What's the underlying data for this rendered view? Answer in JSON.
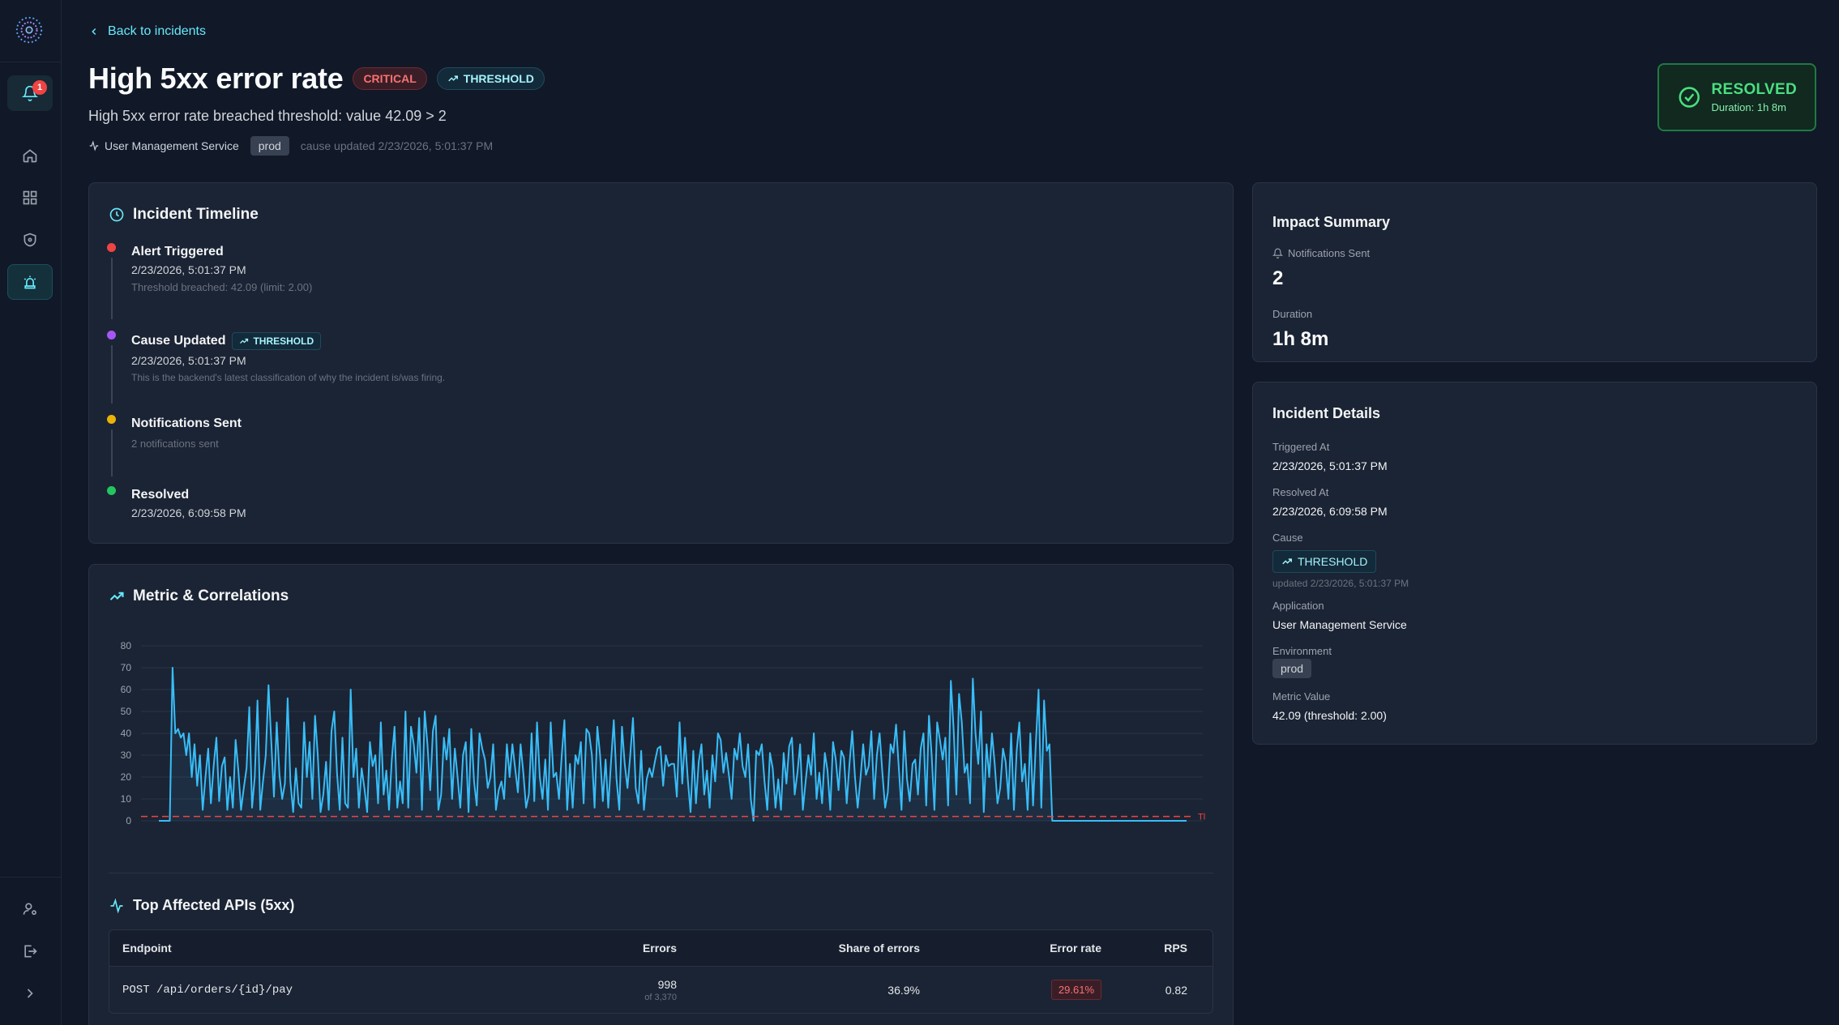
{
  "nav": {
    "notification_count": "1"
  },
  "header": {
    "back_label": "Back to incidents",
    "title": "High 5xx error rate",
    "severity": "CRITICAL",
    "cause_type": "THRESHOLD",
    "description": "High 5xx error rate breached threshold: value 42.09 > 2",
    "service": "User Management Service",
    "environment": "prod",
    "cause_updated": "cause updated 2/23/2026, 5:01:37 PM",
    "status": "RESOLVED",
    "status_duration": "Duration: 1h 8m",
    "status_color": "#4ade80"
  },
  "timeline": {
    "title": "Incident Timeline",
    "items": [
      {
        "label": "Alert Triggered",
        "time": "2/23/2026, 5:01:37 PM",
        "note": "Threshold breached: 42.09 (limit: 2.00)",
        "color": "#ef4444"
      },
      {
        "label": "Cause Updated",
        "badge": "THRESHOLD",
        "time": "2/23/2026, 5:01:37 PM",
        "note": "This is the backend's latest classification of why the incident is/was firing.",
        "color": "#a855f7"
      },
      {
        "label": "Notifications Sent",
        "note": "2 notifications sent",
        "color": "#eab308"
      },
      {
        "label": "Resolved",
        "time": "2/23/2026, 6:09:58 PM",
        "color": "#22c55e"
      }
    ]
  },
  "metrics": {
    "title": "Metric & Correlations",
    "threshold_label": "Tl"
  },
  "chart_data": {
    "type": "line",
    "title": "",
    "xlabel": "",
    "ylabel": "",
    "ylim": [
      0,
      80
    ],
    "yticks": [
      0,
      10,
      20,
      30,
      40,
      50,
      60,
      70,
      80
    ],
    "grid": true,
    "threshold": 2,
    "series": [
      {
        "values": [
          0,
          0,
          0,
          0,
          0,
          70,
          40,
          42,
          38,
          40,
          30,
          40,
          20,
          35,
          16,
          30,
          5,
          20,
          33,
          8,
          25,
          38,
          9,
          25,
          29,
          5,
          20,
          6,
          37,
          23,
          5,
          15,
          24,
          52,
          6,
          20,
          55,
          5,
          18,
          30,
          62,
          37,
          11,
          45,
          21,
          10,
          17,
          56,
          18,
          4,
          24,
          8,
          6,
          45,
          20,
          36,
          10,
          48,
          30,
          4,
          12,
          27,
          5,
          41,
          50,
          22,
          5,
          38,
          8,
          6,
          60,
          20,
          33,
          6,
          24,
          15,
          4,
          36,
          25,
          30,
          8,
          45,
          12,
          23,
          5,
          28,
          43,
          6,
          18,
          8,
          50,
          6,
          43,
          35,
          22,
          47,
          5,
          50,
          35,
          14,
          41,
          48,
          5,
          12,
          38,
          28,
          42,
          10,
          33,
          20,
          6,
          30,
          36,
          4,
          42,
          18,
          7,
          40,
          33,
          28,
          15,
          20,
          35,
          5,
          14,
          18,
          10,
          35,
          20,
          35,
          24,
          13,
          35,
          22,
          6,
          12,
          40,
          9,
          45,
          20,
          10,
          28,
          5,
          45,
          20,
          22,
          10,
          30,
          46,
          5,
          26,
          6,
          30,
          26,
          36,
          8,
          42,
          40,
          30,
          6,
          43,
          30,
          9,
          28,
          6,
          27,
          46,
          19,
          5,
          43,
          26,
          15,
          30,
          47,
          15,
          8,
          32,
          5,
          19,
          24,
          20,
          27,
          33,
          34,
          16,
          30,
          25,
          26,
          26,
          11,
          45,
          17,
          38,
          19,
          4,
          32,
          8,
          27,
          35,
          12,
          23,
          6,
          30,
          18,
          40,
          37,
          22,
          31,
          21,
          10,
          33,
          28,
          40,
          25,
          20,
          35,
          10,
          0,
          32,
          30,
          35,
          18,
          5,
          31,
          24,
          6,
          19,
          5,
          31,
          17,
          34,
          38,
          12,
          22,
          35,
          5,
          18,
          30,
          21,
          40,
          10,
          22,
          8,
          31,
          23,
          5,
          36,
          28,
          14,
          32,
          29,
          8,
          26,
          41,
          20,
          6,
          19,
          35,
          21,
          25,
          41,
          10,
          30,
          40,
          22,
          6,
          13,
          35,
          31,
          44,
          24,
          5,
          41,
          19,
          9,
          26,
          28,
          12,
          33,
          40,
          7,
          48,
          30,
          5,
          45,
          37,
          28,
          38,
          7,
          64,
          42,
          12,
          58,
          45,
          22,
          26,
          8,
          65,
          40,
          26,
          50,
          4,
          35,
          20,
          40,
          26,
          8,
          15,
          33,
          27,
          10,
          40,
          5,
          32,
          45,
          18,
          26,
          5,
          40,
          7,
          35,
          60,
          6,
          55,
          32,
          35,
          0,
          0,
          0,
          0,
          0,
          0,
          0,
          0,
          0,
          0,
          0,
          0,
          0,
          0,
          0,
          0,
          0,
          0,
          0,
          0,
          0,
          0,
          0,
          0,
          0,
          0,
          0,
          0,
          0,
          0,
          0,
          0,
          0,
          0,
          0,
          0,
          0,
          0,
          0,
          0,
          0,
          0,
          0,
          0,
          0,
          0,
          0,
          0,
          0,
          0
        ]
      }
    ]
  },
  "apis": {
    "title": "Top Affected APIs (5xx)",
    "columns": [
      "Endpoint",
      "Errors",
      "Share of errors",
      "Error rate",
      "RPS"
    ],
    "rows": [
      {
        "endpoint": "POST /api/orders/{id}/pay",
        "errors": "998",
        "errors_of": "of 3,370",
        "share": "36.9%",
        "rate": "29.61%",
        "rps": "0.82"
      }
    ]
  },
  "impact": {
    "title": "Impact Summary",
    "notifications_label": "Notifications Sent",
    "notifications_value": "2",
    "duration_label": "Duration",
    "duration_value": "1h 8m"
  },
  "details": {
    "title": "Incident Details",
    "triggered_label": "Triggered At",
    "triggered_value": "2/23/2026, 5:01:37 PM",
    "resolved_label": "Resolved At",
    "resolved_value": "2/23/2026, 6:09:58 PM",
    "cause_label": "Cause",
    "cause_value": "THRESHOLD",
    "cause_note": "updated 2/23/2026, 5:01:37 PM",
    "app_label": "Application",
    "app_value": "User Management Service",
    "env_label": "Environment",
    "env_value": "prod",
    "metric_label": "Metric Value",
    "metric_value": "42.09 (threshold: 2.00)"
  }
}
